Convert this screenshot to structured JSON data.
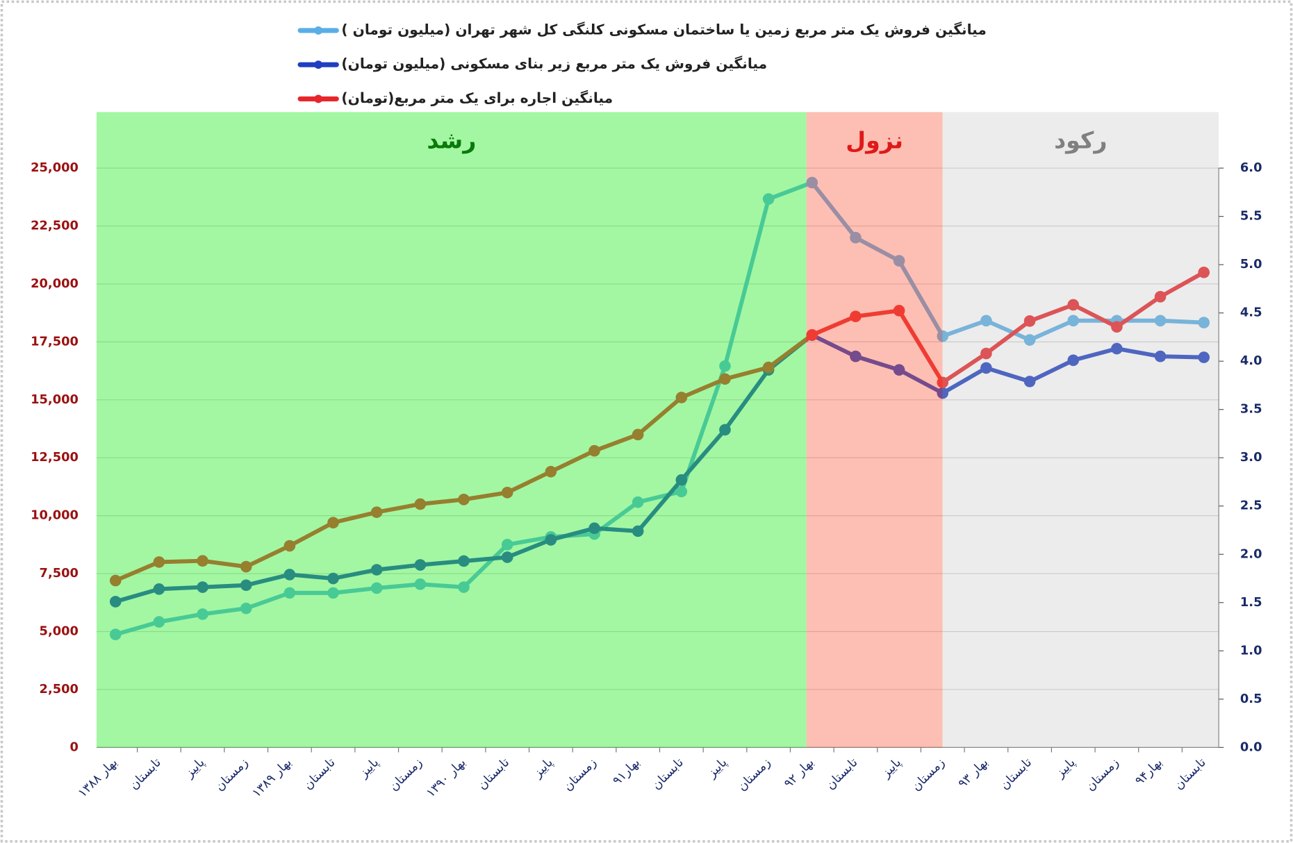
{
  "chart_data": {
    "type": "line",
    "regions": [
      {
        "label": "رشد",
        "color": "#0a7a0a"
      },
      {
        "label": "نزول",
        "color": "#e01818"
      },
      {
        "label": "رکود",
        "color": "#808080"
      }
    ],
    "categories": [
      "بهار ۱۳۸۸",
      "تابستان",
      "پاییز",
      "زمستان",
      "بهار ۱۳۸۹",
      "تابستان",
      "پاییز",
      "زمستان",
      "بهار ۱۳۹۰",
      "تابستان",
      "پاییز",
      "زمستان",
      "بهار۹۱",
      "تابستان",
      "پاییز",
      "زمستان",
      "بهار ۹۲",
      "تابستان",
      "پاییز",
      "زمستان",
      "بهار ۹۳",
      "تابستان",
      "پاییز",
      "زمستان",
      "بهار۹۴",
      "تابستان"
    ],
    "series": [
      {
        "name": "میانگین فروش یک متر مربع زمین یا ساختمان مسکونی کلنگی کل شهر تهران (میلیون تومان )",
        "color": "#5aaee6",
        "axis": "y2",
        "values": [
          1.17,
          1.3,
          1.38,
          1.44,
          1.6,
          1.6,
          1.65,
          1.69,
          1.66,
          2.1,
          2.18,
          2.21,
          2.54,
          2.65,
          3.95,
          5.68,
          5.85,
          5.28,
          5.04,
          4.26,
          4.42,
          4.22,
          4.42,
          4.42,
          4.42,
          4.4
        ]
      },
      {
        "name": "میانگین فروش یک متر مربع زیر بنای مسکونی (میلیون تومان)",
        "color": "#1f3fc0",
        "axis": "y2",
        "values": [
          1.51,
          1.64,
          1.66,
          1.68,
          1.79,
          1.75,
          1.84,
          1.89,
          1.93,
          1.97,
          2.15,
          2.27,
          2.24,
          2.77,
          3.29,
          3.91,
          4.27,
          4.05,
          3.91,
          3.67,
          3.93,
          3.79,
          4.01,
          4.13,
          4.05,
          4.04
        ]
      },
      {
        "name": "میانگین اجاره برای یک متر مربع(تومان)",
        "color": "#e8262a",
        "values": [
          7200,
          8000,
          8050,
          7800,
          8700,
          9700,
          10150,
          10500,
          10700,
          11000,
          11900,
          12800,
          13500,
          15100,
          15900,
          16400,
          17800,
          18600,
          18850,
          15750,
          17000,
          18400,
          19100,
          18150,
          19450,
          20500
        ]
      }
    ],
    "ylim": [
      0,
      25000
    ],
    "yticks": [
      0,
      {
        "value": 2500,
        "label": "2,500"
      },
      {
        "value": 5000,
        "label": "5,000"
      },
      {
        "value": 7500,
        "label": "7,500"
      },
      {
        "value": 10000,
        "label": "10,000"
      },
      {
        "value": 12500,
        "label": "12,500"
      },
      {
        "value": 15000,
        "label": "15,000"
      },
      {
        "value": 17500,
        "label": "17,500"
      },
      {
        "value": 20000,
        "label": "20,000"
      },
      {
        "value": 22500,
        "label": "22,500"
      },
      {
        "value": 25000,
        "label": "25,000"
      }
    ],
    "y2lim": [
      0,
      6
    ],
    "y2ticks": [
      {
        "value": 0,
        "label": "0.0"
      },
      0.5,
      {
        "value": 1,
        "label": "1.0"
      },
      1.5,
      {
        "value": 2,
        "label": "2.0"
      },
      2.5,
      {
        "value": 3,
        "label": "3.0"
      },
      3.5,
      {
        "value": 4,
        "label": "4.0"
      },
      4.5,
      {
        "value": 5,
        "label": "5.0"
      },
      5.5,
      {
        "value": 6,
        "label": "6.0"
      }
    ],
    "grid": true
  }
}
